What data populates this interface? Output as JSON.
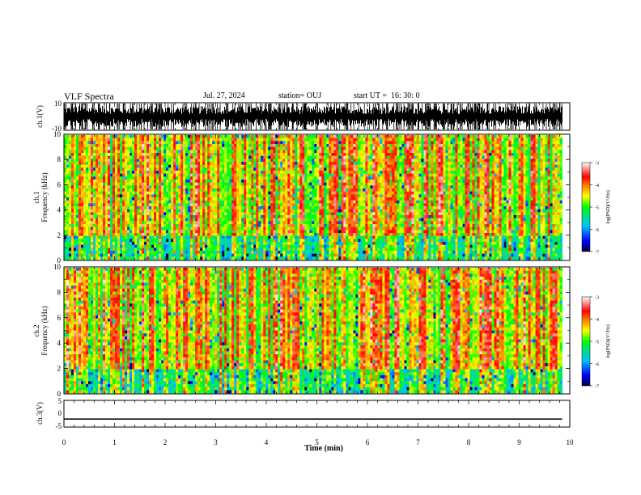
{
  "header": {
    "title": "VLF Spectra",
    "date": "Jul. 27, 2024",
    "station": "station= OUJ",
    "start": "start UT =  16: 30: 0"
  },
  "chart_data": [
    {
      "type": "line",
      "panel": "waveform-ch1",
      "title": "",
      "ylabel": "ch.1(V)",
      "xlim": [
        0,
        10
      ],
      "ylim": [
        -10,
        10
      ],
      "yticks": [
        "10",
        "-10"
      ],
      "description": "dense broadband waveform saturating between about -10 V and 10 V"
    },
    {
      "type": "heatmap",
      "panel": "spectrogram-ch1",
      "ylabel_line1": "ch.1",
      "ylabel_line2": "Frequency (kHz)",
      "xlim": [
        0,
        10
      ],
      "ylim": [
        0,
        10
      ],
      "yticks": [
        "0",
        "2",
        "4",
        "6",
        "8",
        "10"
      ],
      "data_end_min": 9.85,
      "colorbar": {
        "label": "log(PSD)(V²/Hz)",
        "range": [
          -7,
          -3
        ],
        "ticks": [
          "-3",
          "-4",
          "-5",
          "-6",
          "-7"
        ],
        "colors": [
          "#000080",
          "#0000ff",
          "#00a0ff",
          "#00e0a0",
          "#00ff00",
          "#ffff00",
          "#ff8000",
          "#ff0000",
          "#ffffff"
        ]
      }
    },
    {
      "type": "heatmap",
      "panel": "spectrogram-ch2",
      "ylabel_line1": "ch.2",
      "ylabel_line2": "Frequency (kHz)",
      "xlim": [
        0,
        10
      ],
      "ylim": [
        0,
        10
      ],
      "yticks": [
        "0",
        "2",
        "4",
        "6",
        "8",
        "10"
      ],
      "data_end_min": 9.85,
      "colorbar": {
        "label": "log(PSD)(V²/Hz)",
        "range": [
          -7,
          -3
        ],
        "ticks": [
          "-3",
          "-4",
          "-5",
          "-6",
          "-7"
        ]
      }
    },
    {
      "type": "line",
      "panel": "waveform-ch3",
      "ylabel": "ch.3(V)",
      "xlim": [
        0,
        10
      ],
      "ylim": [
        -5,
        5
      ],
      "yticks": [
        "5",
        "0",
        "-5"
      ],
      "series": [
        {
          "x": [
            0,
            9.85
          ],
          "values": [
            -2,
            -2
          ]
        }
      ]
    }
  ],
  "xaxis": {
    "label": "Time (min)",
    "ticks": [
      "0",
      "1",
      "2",
      "3",
      "4",
      "5",
      "6",
      "7",
      "8",
      "9",
      "10"
    ]
  }
}
